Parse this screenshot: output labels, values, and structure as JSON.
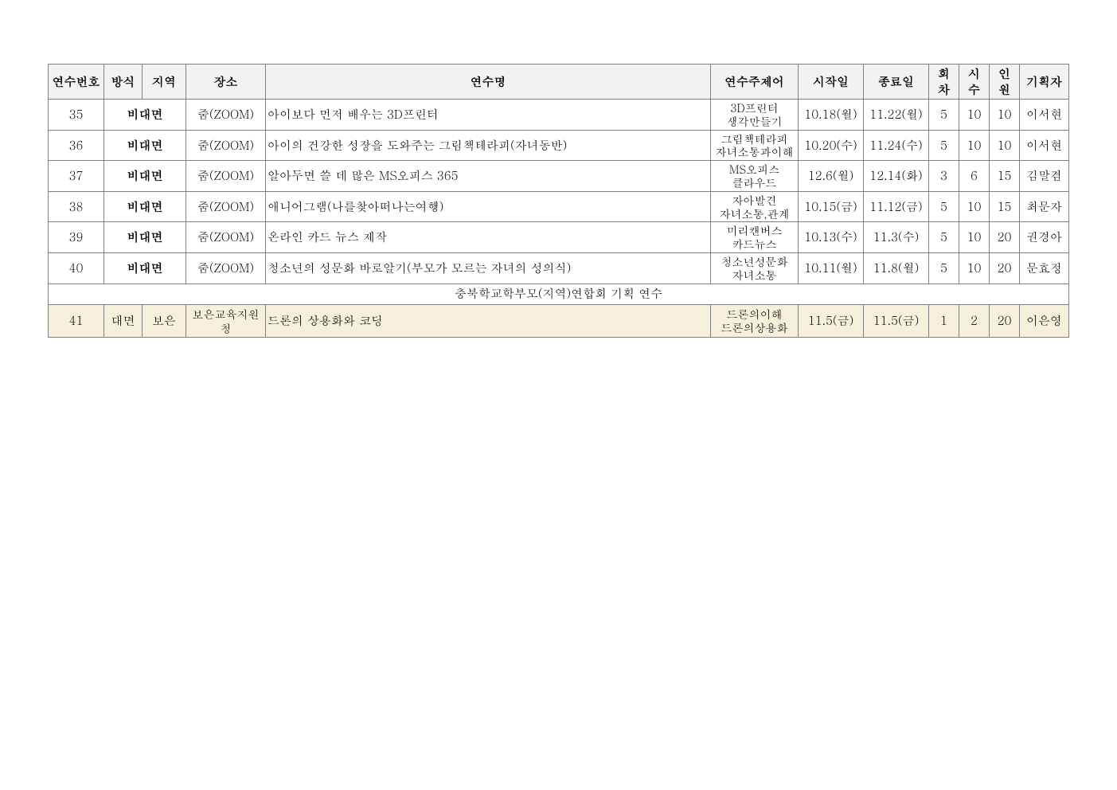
{
  "headers": {
    "num": "연수번호",
    "method": "방식",
    "region": "지역",
    "place": "장소",
    "title": "연수명",
    "subject": "연수주제어",
    "start": "시작일",
    "end": "종료일",
    "sessions": "회차",
    "hours": "시수",
    "capacity": "인원",
    "planner": "기획자"
  },
  "rows": [
    {
      "num": "35",
      "method": "비대면",
      "place": "줌(ZOOM)",
      "title": "아이보다 먼저 배우는 3D프린터",
      "subject_line1": "3D프린터",
      "subject_line2": "생각만들기",
      "start": "10.18(월)",
      "end": "11.22(월)",
      "sessions": "5",
      "hours": "10",
      "capacity": "10",
      "planner": "이서현"
    },
    {
      "num": "36",
      "method": "비대면",
      "place": "줌(ZOOM)",
      "title": "아이의 건강한 성장을 도와주는 그림책테라피(자녀동반)",
      "subject_line1": "그림책테라피",
      "subject_line2": "자녀소통과이해",
      "start": "10.20(수)",
      "end": "11.24(수)",
      "sessions": "5",
      "hours": "10",
      "capacity": "10",
      "planner": "이서현"
    },
    {
      "num": "37",
      "method": "비대면",
      "place": "줌(ZOOM)",
      "title": "알아두면 쓸 데 많은 MS오피스 365",
      "subject_line1": "MS오피스",
      "subject_line2": "클라우드",
      "start": "12.6(월)",
      "end": "12.14(화)",
      "sessions": "3",
      "hours": "6",
      "capacity": "15",
      "planner": "김말겸"
    },
    {
      "num": "38",
      "method": "비대면",
      "place": "줌(ZOOM)",
      "title": "애니어그램(나를찾아떠나는여행)",
      "subject_line1": "자아발견",
      "subject_line2": "자녀소통,관계",
      "start": "10.15(금)",
      "end": "11.12(금)",
      "sessions": "5",
      "hours": "10",
      "capacity": "15",
      "planner": "최문자"
    },
    {
      "num": "39",
      "method": "비대면",
      "place": "줌(ZOOM)",
      "title": "온라인 카드 뉴스 제작",
      "subject_line1": "미리캔버스",
      "subject_line2": "카드뉴스",
      "start": "10.13(수)",
      "end": "11.3(수)",
      "sessions": "5",
      "hours": "10",
      "capacity": "20",
      "planner": "권경아"
    },
    {
      "num": "40",
      "method": "비대면",
      "place": "줌(ZOOM)",
      "title": "청소년의 성문화 바로알기(부모가 모르는 자녀의 성의식)",
      "subject_line1": "청소년성문화",
      "subject_line2": "자녀소통",
      "start": "10.11(월)",
      "end": "11.8(월)",
      "sessions": "5",
      "hours": "10",
      "capacity": "20",
      "planner": "문효정"
    }
  ],
  "section_title": "충북학교학부모(지역)연합회 기획 연수",
  "highlight_row": {
    "num": "41",
    "method": "대면",
    "region": "보은",
    "place": "보은교육지원청",
    "title": "드론의 상용화와 코딩",
    "subject_line1": "드론의이해",
    "subject_line2": "드론의상용화",
    "start": "11.5(금)",
    "end": "11.5(금)",
    "sessions": "1",
    "hours": "2",
    "capacity": "20",
    "planner": "이은영"
  }
}
